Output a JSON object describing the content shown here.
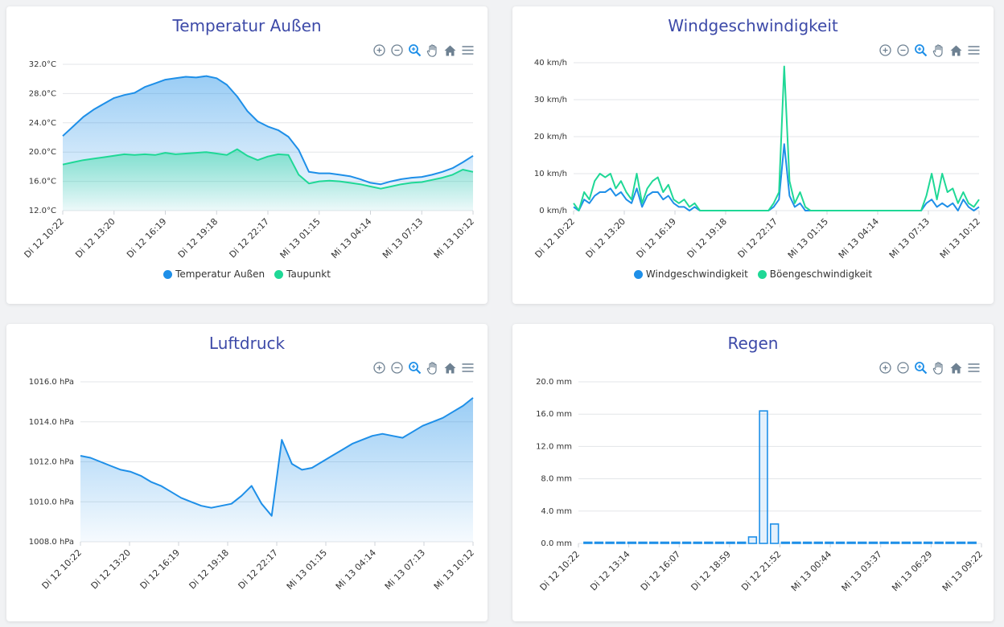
{
  "toolbar_icons": [
    "zoom-in-icon",
    "zoom-out-icon",
    "zoom-select-icon",
    "pan-hand-icon",
    "home-reset-icon",
    "menu-icon"
  ],
  "colors": {
    "blue": "#1e8fe8",
    "green": "#1fd896",
    "title": "#3d4aa8"
  },
  "charts": {
    "temp": {
      "title": "Temperatur Außen",
      "legend": [
        "Temperatur Außen",
        "Taupunkt"
      ]
    },
    "wind": {
      "title": "Windgeschwindigkeit",
      "legend": [
        "Windgeschwindigkeit",
        "Böengeschwindigkeit"
      ]
    },
    "pressure": {
      "title": "Luftdruck"
    },
    "rain": {
      "title": "Regen"
    }
  },
  "chart_data": [
    {
      "id": "temp",
      "type": "area",
      "title": "Temperatur Außen",
      "ylim": [
        12,
        32
      ],
      "yticks": [
        "12.0°C",
        "16.0°C",
        "20.0°C",
        "24.0°C",
        "28.0°C",
        "32.0°C"
      ],
      "xticks": [
        "Di 12 10:22",
        "Di 12 13:20",
        "Di 12 16:19",
        "Di 12 19:18",
        "Di 12 22:17",
        "Mi 13 01:15",
        "Mi 13 04:14",
        "Mi 13 07:13",
        "Mi 13 10:12"
      ],
      "legend_position": "bottom",
      "series": [
        {
          "name": "Temperatur Außen",
          "values": [
            22.2,
            23.5,
            24.8,
            25.8,
            26.6,
            27.4,
            27.8,
            28.1,
            28.9,
            29.4,
            29.9,
            30.1,
            30.3,
            30.2,
            30.4,
            30.1,
            29.2,
            27.6,
            25.6,
            24.2,
            23.5,
            23.0,
            22.1,
            20.3,
            17.3,
            17.1,
            17.1,
            16.9,
            16.7,
            16.3,
            15.8,
            15.6,
            16.0,
            16.3,
            16.5,
            16.6,
            16.9,
            17.3,
            17.8,
            18.6,
            19.5
          ],
          "fill": true
        },
        {
          "name": "Taupunkt",
          "values": [
            18.3,
            18.6,
            18.9,
            19.1,
            19.3,
            19.5,
            19.7,
            19.6,
            19.7,
            19.6,
            19.9,
            19.7,
            19.8,
            19.9,
            20.0,
            19.8,
            19.6,
            20.4,
            19.5,
            18.9,
            19.4,
            19.7,
            19.6,
            16.9,
            15.7,
            16.0,
            16.1,
            16.0,
            15.8,
            15.6,
            15.3,
            15.0,
            15.3,
            15.6,
            15.8,
            15.9,
            16.2,
            16.5,
            16.9,
            17.6,
            17.3
          ],
          "fill": true
        }
      ]
    },
    {
      "id": "wind",
      "type": "line",
      "title": "Windgeschwindigkeit",
      "ylim": [
        0,
        40
      ],
      "yticks": [
        "0 km/h",
        "10 km/h",
        "20 km/h",
        "30 km/h",
        "40 km/h"
      ],
      "xticks": [
        "Di 12 10:22",
        "Di 12 13:20",
        "Di 12 16:19",
        "Di 12 19:18",
        "Di 12 22:17",
        "Mi 13 01:15",
        "Mi 13 04:14",
        "Mi 13 07:13",
        "Mi 13 10:12"
      ],
      "legend_position": "bottom",
      "series": [
        {
          "name": "Windgeschwindigkeit",
          "values": [
            1,
            0,
            3,
            2,
            4,
            5,
            5,
            6,
            4,
            5,
            3,
            2,
            6,
            1,
            4,
            5,
            5,
            3,
            4,
            2,
            1,
            1,
            0,
            1,
            0,
            0,
            0,
            0,
            0,
            0,
            0,
            0,
            0,
            0,
            0,
            0,
            0,
            0,
            1,
            3,
            18,
            4,
            1,
            2,
            0,
            0,
            0,
            0,
            0,
            0,
            0,
            0,
            0,
            0,
            0,
            0,
            0,
            0,
            0,
            0,
            0,
            0,
            0,
            0,
            0,
            0,
            0,
            2,
            3,
            1,
            2,
            1,
            2,
            0,
            3,
            1,
            0,
            1
          ],
          "fill": false
        },
        {
          "name": "Böengeschwindigkeit",
          "values": [
            2,
            0,
            5,
            3,
            8,
            10,
            9,
            10,
            6,
            8,
            5,
            3,
            10,
            2,
            6,
            8,
            9,
            5,
            7,
            3,
            2,
            3,
            1,
            2,
            0,
            0,
            0,
            0,
            0,
            0,
            0,
            0,
            0,
            0,
            0,
            0,
            0,
            0,
            2,
            5,
            39,
            8,
            2,
            5,
            1,
            0,
            0,
            0,
            0,
            0,
            0,
            0,
            0,
            0,
            0,
            0,
            0,
            0,
            0,
            0,
            0,
            0,
            0,
            0,
            0,
            0,
            0,
            4,
            10,
            3,
            10,
            5,
            6,
            2,
            5,
            2,
            1,
            3
          ],
          "fill": false
        }
      ]
    },
    {
      "id": "pressure",
      "type": "area",
      "title": "Luftdruck",
      "ylim": [
        1008,
        1016
      ],
      "yticks": [
        "1008.0 hPa",
        "1010.0 hPa",
        "1012.0 hPa",
        "1014.0 hPa",
        "1016.0 hPa"
      ],
      "xticks": [
        "Di 12 10:22",
        "Di 12 13:20",
        "Di 12 16:19",
        "Di 12 19:18",
        "Di 12 22:17",
        "Mi 13 01:15",
        "Mi 13 04:14",
        "Mi 13 07:13",
        "Mi 13 10:12"
      ],
      "legend_position": "none",
      "series": [
        {
          "name": "",
          "values": [
            1012.3,
            1012.2,
            1012.0,
            1011.8,
            1011.6,
            1011.5,
            1011.3,
            1011.0,
            1010.8,
            1010.5,
            1010.2,
            1010.0,
            1009.8,
            1009.7,
            1009.8,
            1009.9,
            1010.3,
            1010.8,
            1009.9,
            1009.3,
            1013.1,
            1011.9,
            1011.6,
            1011.7,
            1012.0,
            1012.3,
            1012.6,
            1012.9,
            1013.1,
            1013.3,
            1013.4,
            1013.3,
            1013.2,
            1013.5,
            1013.8,
            1014.0,
            1014.2,
            1014.5,
            1014.8,
            1015.2
          ],
          "fill": true
        }
      ]
    },
    {
      "id": "rain",
      "type": "bar",
      "title": "Regen",
      "ylim": [
        0,
        20
      ],
      "yticks": [
        "0.0 mm",
        "4.0 mm",
        "8.0 mm",
        "12.0 mm",
        "16.0 mm",
        "20.0 mm"
      ],
      "xticks": [
        "Di 12 10:22",
        "Di 12 13:14",
        "Di 12 16:07",
        "Di 12 18:59",
        "Di 12 21:52",
        "Mi 13 00:44",
        "Mi 13 03:37",
        "Mi 13 06:29",
        "Mi 13 09:22"
      ],
      "legend_position": "none",
      "series": [
        {
          "name": "",
          "values": [
            0,
            0,
            0,
            0,
            0,
            0,
            0,
            0,
            0,
            0,
            0,
            0,
            0,
            0,
            0,
            0.8,
            16.4,
            2.4,
            0,
            0,
            0,
            0,
            0,
            0,
            0,
            0,
            0,
            0,
            0,
            0,
            0,
            0,
            0,
            0,
            0,
            0
          ],
          "fill": true
        }
      ]
    }
  ]
}
